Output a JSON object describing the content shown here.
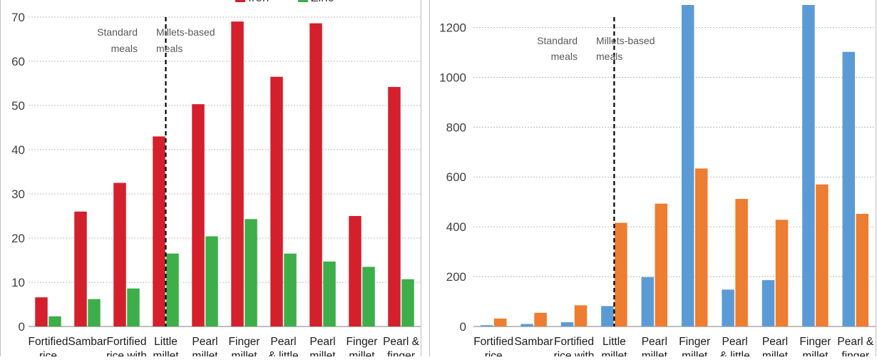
{
  "chart_data": [
    {
      "type": "bar",
      "categories": [
        [
          "Fortified",
          "rice"
        ],
        [
          "Sambar"
        ],
        [
          "Fortified",
          "rice with"
        ],
        [
          "Little",
          "millet"
        ],
        [
          "Pearl",
          "millet"
        ],
        [
          "Finger",
          "millet"
        ],
        [
          "Pearl",
          "& little"
        ],
        [
          "Pearl",
          "millet"
        ],
        [
          "Finger",
          "millet"
        ],
        [
          "Pearl &",
          "finger"
        ]
      ],
      "series": [
        {
          "name": "Iron",
          "color": "#D4202C",
          "values": [
            6.6,
            26,
            32.5,
            43,
            50.3,
            69,
            56.5,
            68.6,
            25,
            54.2
          ]
        },
        {
          "name": "Zinc",
          "color": "#3DAE49",
          "values": [
            2.3,
            6.2,
            8.6,
            16.5,
            20.4,
            24.3,
            16.5,
            14.7,
            13.5,
            10.7
          ]
        }
      ],
      "ylim": [
        0,
        70
      ],
      "yticks": [
        0,
        10,
        20,
        30,
        40,
        50,
        60,
        70
      ],
      "grid": true,
      "legend_position": "top",
      "annotations": {
        "left_lines": [
          "Standard",
          "meals"
        ],
        "right_lines": [
          "Millets-based",
          "meals"
        ]
      }
    },
    {
      "type": "bar",
      "categories": [
        [
          "Fortified",
          "rice"
        ],
        [
          "Sambar"
        ],
        [
          "Fortified",
          "rice with"
        ],
        [
          "Little",
          "millet"
        ],
        [
          "Pearl",
          "millet"
        ],
        [
          "Finger",
          "millet"
        ],
        [
          "Pearl",
          "& little"
        ],
        [
          "Pearl",
          "millet"
        ],
        [
          "Finger",
          "millet"
        ],
        [
          "Pearl &",
          "finger"
        ]
      ],
      "series": [
        {
          "color": "#5B9BD5",
          "values": [
            5,
            10,
            17,
            82,
            198,
            1290,
            148,
            186,
            1290,
            1102
          ]
        },
        {
          "color": "#ED7D31",
          "values": [
            32,
            55,
            85,
            416,
            493,
            634,
            512,
            428,
            570,
            452
          ]
        }
      ],
      "ylim": [
        0,
        1290
      ],
      "yticks": [
        0,
        200,
        400,
        600,
        800,
        1000,
        1200
      ],
      "grid": true,
      "annotations": {
        "left_lines": [
          "Standard",
          "meals"
        ],
        "right_lines": [
          "Millets-based",
          "meals"
        ]
      }
    }
  ]
}
